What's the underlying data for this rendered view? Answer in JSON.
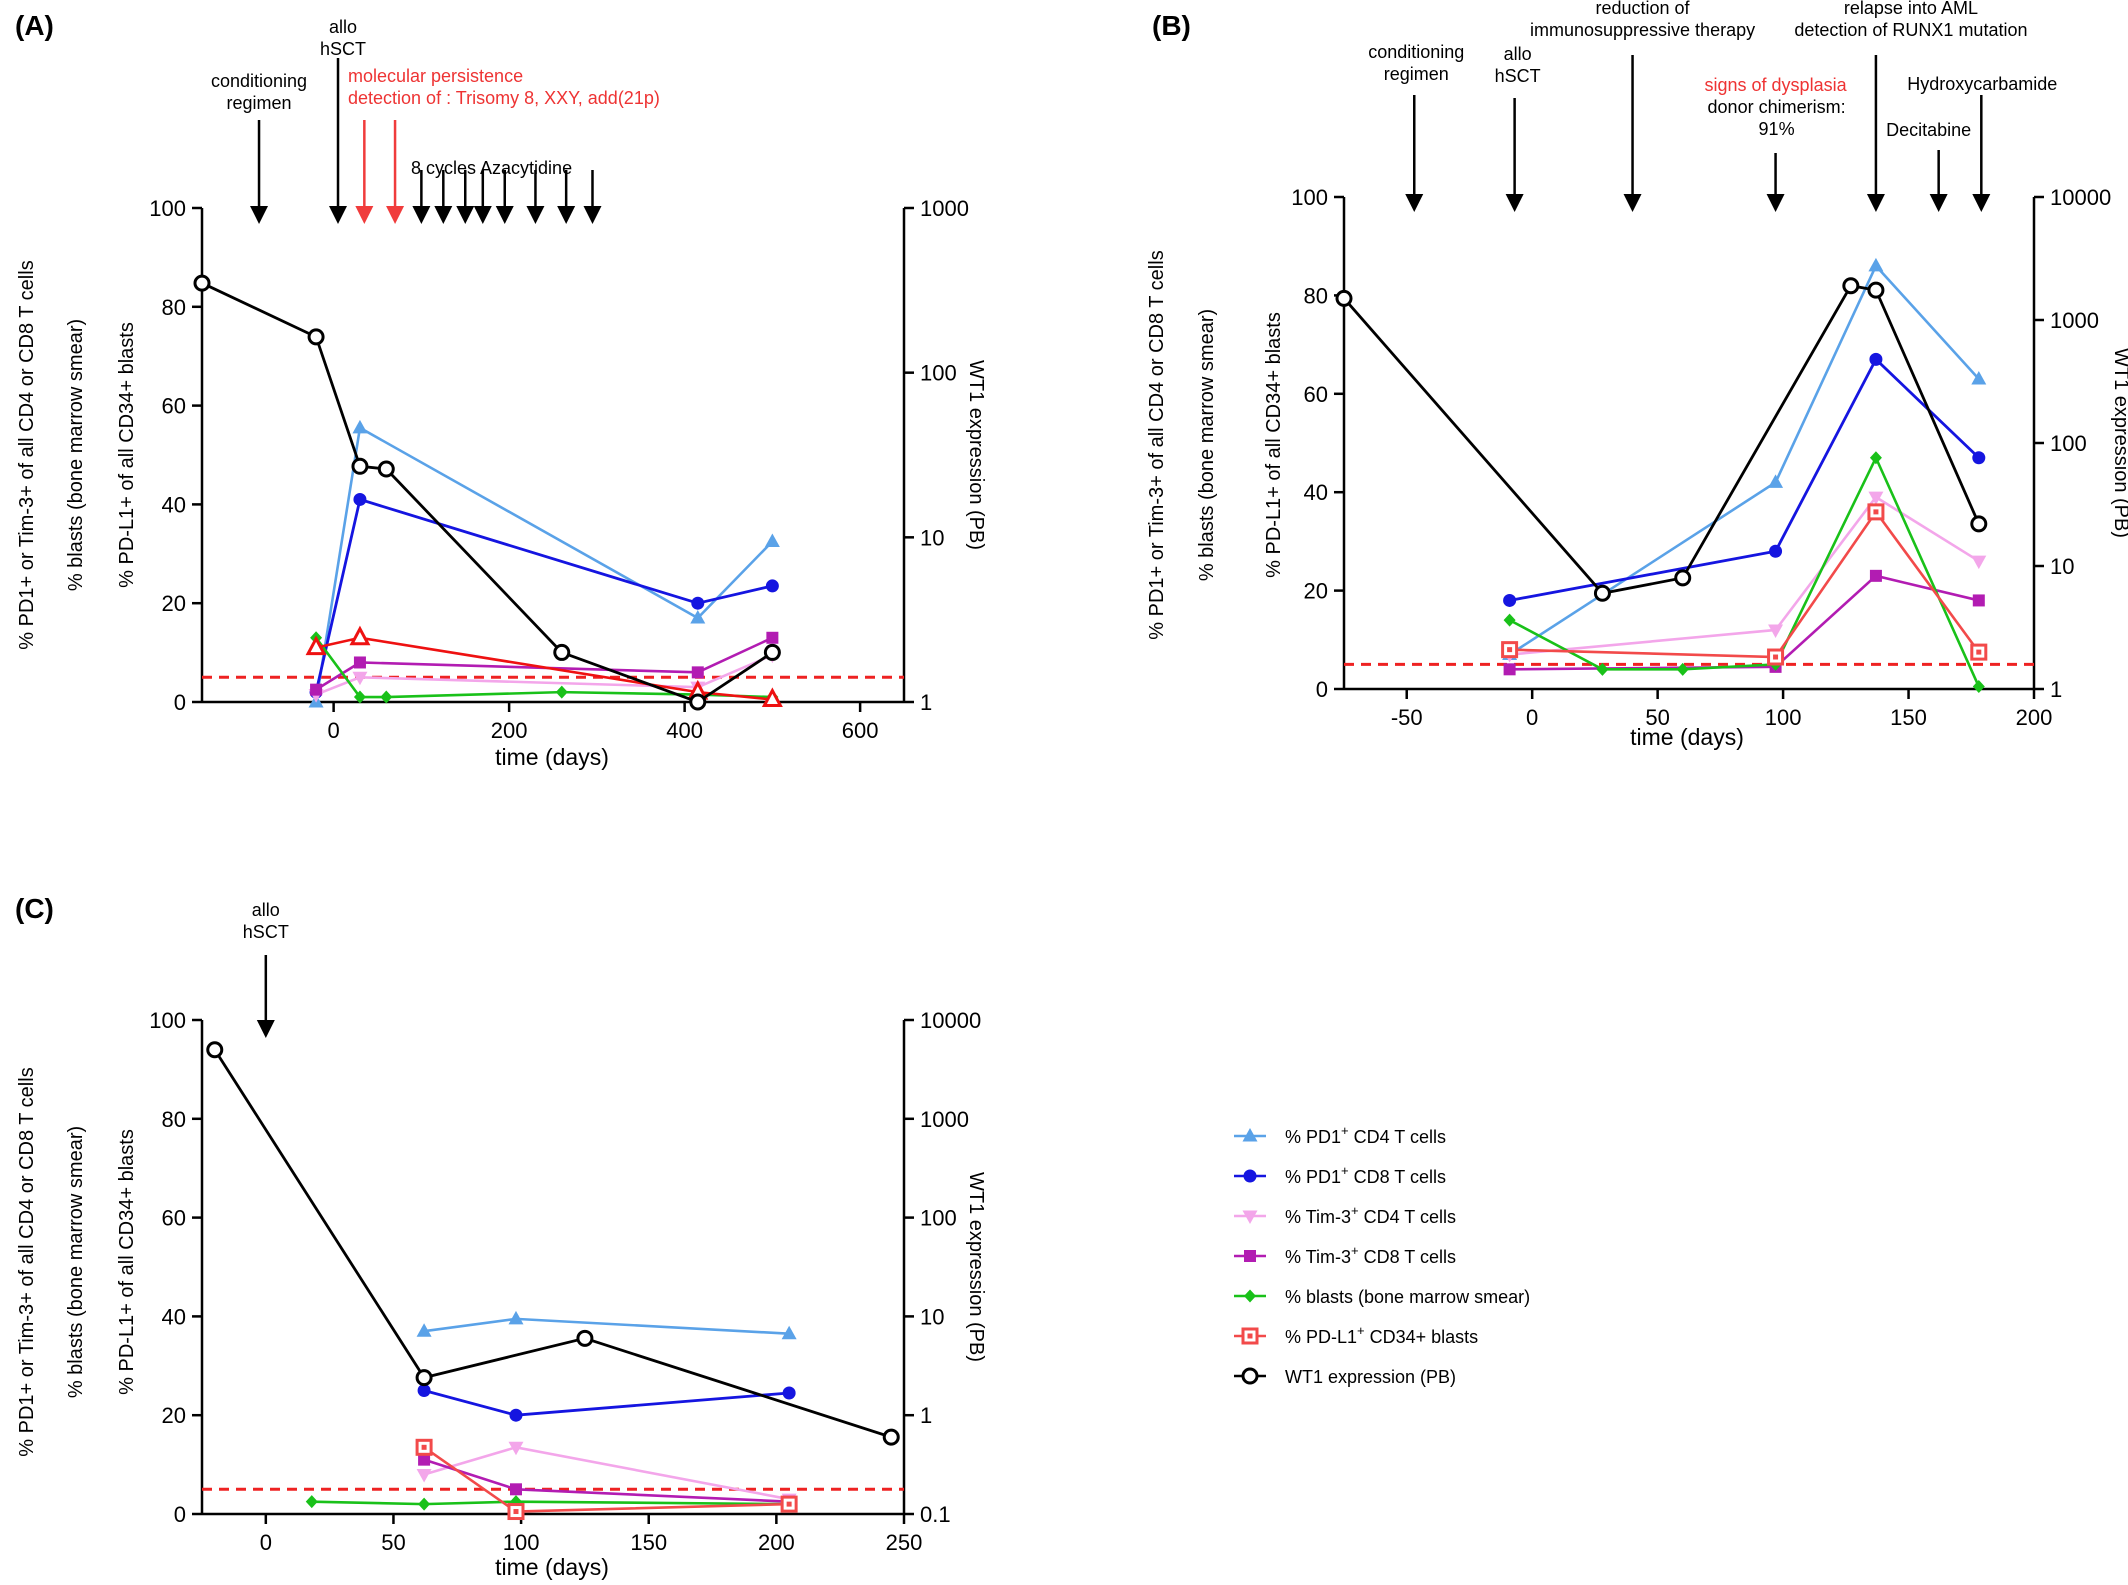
{
  "colors": {
    "pd1_cd4": "#5AA2E8",
    "pd1_cd8": "#1515E0",
    "tim3_cd4": "#F3A6EA",
    "tim3_cd8": "#B21CB2",
    "blasts": "#19C119",
    "pdl1_cd34": "#F24A4A",
    "pdl1_cd34_A": "#EE1111",
    "wt1": "#000000",
    "threshold": "#EE2222",
    "red_text": "#EE3333"
  },
  "legend": {
    "items": [
      {
        "key": "pd1_cd4",
        "marker": "triangle-up",
        "pre": "% PD1",
        "sup": "+",
        "post": " CD4 T cells"
      },
      {
        "key": "pd1_cd8",
        "marker": "circle",
        "pre": "% PD1",
        "sup": "+",
        "post": " CD8 T cells"
      },
      {
        "key": "tim3_cd4",
        "marker": "triangle-down",
        "pre": "% Tim-3",
        "sup": "+",
        "post": " CD4 T cells"
      },
      {
        "key": "tim3_cd8",
        "marker": "square",
        "pre": "% Tim-3",
        "sup": "+",
        "post": " CD8 T cells"
      },
      {
        "key": "blasts",
        "marker": "diamond",
        "pre": "% blasts (bone marrow smear)",
        "sup": "",
        "post": ""
      },
      {
        "key": "pdl1_cd34",
        "marker": "open-square",
        "pre": "% PD-L1",
        "sup": "+",
        "post": " CD34+ blasts"
      },
      {
        "key": "wt1",
        "marker": "open-circle",
        "pre": "WT1 expression (PB)",
        "sup": "",
        "post": ""
      }
    ]
  },
  "chart_data": [
    {
      "panel": "(A)",
      "type": "line",
      "xlabel": "time (days)",
      "xlim": [
        -150,
        650
      ],
      "xticks": [
        0,
        200,
        400,
        600
      ],
      "ylim": [
        0,
        100
      ],
      "yticks": [
        0,
        20,
        40,
        60,
        80,
        100
      ],
      "y2log": true,
      "y2lim": [
        1,
        1000
      ],
      "y2ticks": [
        1,
        10,
        100,
        1000
      ],
      "ylabels": [
        "% PD1+ or Tim-3+ of all CD4 or CD8 T cells",
        "% blasts (bone marrow smear)",
        "% PD-L1+ of all CD34+ blasts"
      ],
      "y2label": "WT1 expression (PB)",
      "threshold": 5,
      "series": [
        {
          "key": "pd1_cd4",
          "axis": "left",
          "marker": "triangle-up",
          "x": [
            -20,
            30,
            415,
            500
          ],
          "y": [
            0,
            55.5,
            17,
            32.5
          ]
        },
        {
          "key": "pd1_cd8",
          "axis": "left",
          "marker": "circle",
          "x": [
            -20,
            30,
            415,
            500
          ],
          "y": [
            2,
            41,
            20,
            23.5
          ]
        },
        {
          "key": "tim3_cd4",
          "axis": "left",
          "marker": "triangle-down",
          "x": [
            -20,
            30,
            415,
            500
          ],
          "y": [
            1.5,
            5,
            3,
            9.5
          ]
        },
        {
          "key": "tim3_cd8",
          "axis": "left",
          "marker": "square",
          "x": [
            -20,
            30,
            415,
            500
          ],
          "y": [
            2.5,
            8,
            6,
            13
          ]
        },
        {
          "key": "blasts",
          "axis": "left",
          "marker": "diamond",
          "x": [
            -20,
            30,
            60,
            260,
            415,
            500
          ],
          "y": [
            13,
            1,
            1,
            2,
            1.5,
            1
          ]
        },
        {
          "key": "pdl1_cd34_A",
          "axis": "left",
          "marker": "open-triangle",
          "x": [
            -20,
            30,
            415,
            500
          ],
          "y": [
            11,
            13,
            2,
            0.5
          ]
        },
        {
          "key": "wt1",
          "axis": "right",
          "marker": "open-circle",
          "x": [
            -150,
            -20,
            30,
            60,
            260,
            415,
            500
          ],
          "y": [
            350,
            165,
            27,
            26,
            2,
            1,
            2
          ]
        }
      ],
      "arrows": [
        {
          "x": -85,
          "color": "black",
          "label": [
            "conditioning",
            "regimen"
          ]
        },
        {
          "x": 5,
          "color": "black",
          "label": [
            "allo",
            "hSCT"
          ]
        },
        {
          "x": 35,
          "color": "red",
          "label": []
        },
        {
          "x": 70,
          "color": "red",
          "label": []
        },
        {
          "x": 100,
          "color": "black",
          "label": []
        },
        {
          "x": 125,
          "color": "black",
          "label": []
        },
        {
          "x": 150,
          "color": "black",
          "label": []
        },
        {
          "x": 170,
          "color": "black",
          "label": []
        },
        {
          "x": 195,
          "color": "black",
          "label": []
        },
        {
          "x": 230,
          "color": "black",
          "label": []
        },
        {
          "x": 265,
          "color": "black",
          "label": []
        },
        {
          "x": 295,
          "color": "black",
          "label": []
        }
      ],
      "notes": [
        {
          "text": "molecular persistence",
          "color": "red"
        },
        {
          "text": "detection of : Trisomy 8, XXY, add(21p)",
          "color": "red"
        },
        {
          "text": "8   cycles   Azacytidine",
          "color": "black"
        }
      ]
    },
    {
      "panel": "(B)",
      "type": "line",
      "xlabel": "time (days)",
      "xlim": [
        -75,
        200
      ],
      "xticks": [
        -50,
        0,
        50,
        100,
        150,
        200
      ],
      "ylim": [
        0,
        100
      ],
      "yticks": [
        0,
        20,
        40,
        60,
        80,
        100
      ],
      "y2log": true,
      "y2lim": [
        1,
        10000
      ],
      "y2ticks": [
        1,
        10,
        100,
        1000,
        10000
      ],
      "ylabels": [
        "% PD1+ or Tim-3+ of all CD4 or CD8 T cells",
        "% blasts (bone marrow smear)",
        "% PD-L1+ of all CD34+ blasts"
      ],
      "y2label": "WT1 expression (PB)",
      "threshold": 5,
      "series": [
        {
          "key": "pd1_cd4",
          "axis": "left",
          "marker": "triangle-up",
          "x": [
            -9,
            97,
            137,
            178
          ],
          "y": [
            7,
            42,
            86,
            63
          ]
        },
        {
          "key": "pd1_cd8",
          "axis": "left",
          "marker": "circle",
          "x": [
            -9,
            97,
            137,
            178
          ],
          "y": [
            18,
            28,
            67,
            47
          ]
        },
        {
          "key": "tim3_cd4",
          "axis": "left",
          "marker": "triangle-down",
          "x": [
            -9,
            97,
            137,
            178
          ],
          "y": [
            7,
            12,
            39,
            26
          ]
        },
        {
          "key": "tim3_cd8",
          "axis": "left",
          "marker": "square",
          "x": [
            -9,
            97,
            137,
            178
          ],
          "y": [
            4,
            4.5,
            23,
            18
          ]
        },
        {
          "key": "blasts",
          "axis": "left",
          "marker": "diamond",
          "x": [
            -9,
            28,
            60,
            97,
            137,
            178
          ],
          "y": [
            14,
            4,
            4,
            5,
            47,
            0.5
          ]
        },
        {
          "key": "pdl1_cd34",
          "axis": "left",
          "marker": "open-square",
          "x": [
            -9,
            97,
            137,
            178
          ],
          "y": [
            8,
            6.5,
            36,
            7.5
          ]
        },
        {
          "key": "wt1",
          "axis": "right",
          "marker": "open-circle",
          "x": [
            -75,
            28,
            60,
            127,
            137,
            178
          ],
          "y": [
            1500,
            6,
            8,
            1900,
            1750,
            22
          ]
        }
      ],
      "arrows": [
        {
          "x": -47,
          "color": "black",
          "label": [
            "conditioning",
            "regimen"
          ]
        },
        {
          "x": -7,
          "color": "black",
          "label": [
            "allo",
            "hSCT"
          ]
        },
        {
          "x": 40,
          "color": "black",
          "label": [
            "reduction of",
            "immunosuppressive therapy"
          ]
        },
        {
          "x": 97,
          "color": "black",
          "label": []
        },
        {
          "x": 137,
          "color": "black",
          "label": [
            "relapse into AML",
            "detection of  RUNX1 mutation"
          ]
        },
        {
          "x": 162,
          "color": "black",
          "label": [
            "Decitabine"
          ]
        },
        {
          "x": 179,
          "color": "black",
          "label": [
            "Hydroxycarbamide"
          ]
        }
      ],
      "notes": [
        {
          "text": "signs of dysplasia",
          "color": "red"
        },
        {
          "text": "donor chimerism:",
          "color": "black"
        },
        {
          "text": "91%",
          "color": "black"
        }
      ]
    },
    {
      "panel": "(C)",
      "type": "line",
      "xlabel": "time (days)",
      "xlim": [
        -25,
        250
      ],
      "xticks": [
        0,
        50,
        100,
        150,
        200,
        250
      ],
      "ylim": [
        0,
        100
      ],
      "yticks": [
        0,
        20,
        40,
        60,
        80,
        100
      ],
      "y2log": true,
      "y2lim": [
        0.1,
        10000
      ],
      "y2ticks": [
        0.1,
        1,
        10,
        100,
        1000,
        10000
      ],
      "ylabels": [
        "% PD1+ or Tim-3+ of all CD4 or CD8 T cells",
        "% blasts (bone marrow smear)",
        "% PD-L1+ of all CD34+ blasts"
      ],
      "y2label": "WT1 expression (PB)",
      "threshold": 5,
      "series": [
        {
          "key": "pd1_cd4",
          "axis": "left",
          "marker": "triangle-up",
          "x": [
            62,
            98,
            205
          ],
          "y": [
            37,
            39.5,
            36.5
          ]
        },
        {
          "key": "pd1_cd8",
          "axis": "left",
          "marker": "circle",
          "x": [
            62,
            98,
            205
          ],
          "y": [
            25,
            20,
            24.5
          ]
        },
        {
          "key": "tim3_cd4",
          "axis": "left",
          "marker": "triangle-down",
          "x": [
            62,
            98,
            205
          ],
          "y": [
            8,
            13.5,
            3
          ]
        },
        {
          "key": "tim3_cd8",
          "axis": "left",
          "marker": "square",
          "x": [
            62,
            98,
            205
          ],
          "y": [
            11,
            5,
            2.5
          ]
        },
        {
          "key": "blasts",
          "axis": "left",
          "marker": "diamond",
          "x": [
            18,
            62,
            98,
            205
          ],
          "y": [
            2.5,
            2,
            2.5,
            2
          ]
        },
        {
          "key": "pdl1_cd34",
          "axis": "left",
          "marker": "open-square",
          "x": [
            62,
            98,
            205
          ],
          "y": [
            13.5,
            0.5,
            2
          ]
        },
        {
          "key": "wt1",
          "axis": "right",
          "marker": "open-circle",
          "x": [
            -20,
            62,
            125,
            245
          ],
          "y": [
            5000,
            2.4,
            6,
            0.6
          ]
        }
      ],
      "arrows": [
        {
          "x": 0,
          "color": "black",
          "label": [
            "allo",
            "hSCT"
          ]
        }
      ],
      "notes": []
    }
  ]
}
